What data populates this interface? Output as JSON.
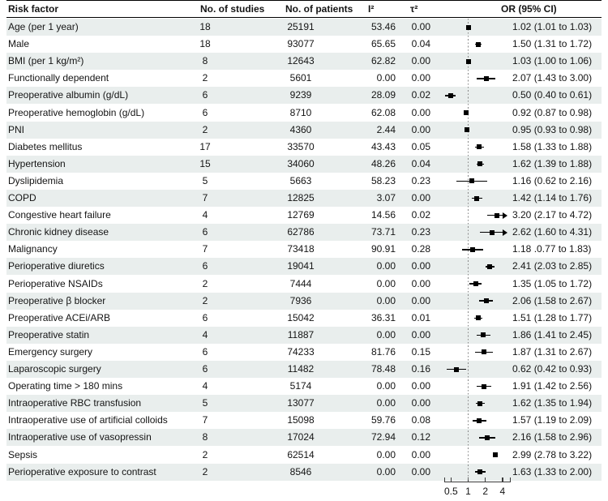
{
  "header": {
    "columns": [
      "Risk factor",
      "No. of studies",
      "No. of patients",
      "I²",
      "τ²",
      "OR (95% CI)"
    ]
  },
  "colors": {
    "row_stripe": "#e9eeed",
    "marker": "#000000",
    "reference_line": "#878787",
    "text": "#141414"
  },
  "chart_data": {
    "type": "table",
    "subtype": "forest-plot",
    "title": "",
    "columns": [
      "Risk factor",
      "No. of studies",
      "No. of patients",
      "I²",
      "τ²",
      "OR (95% CI)"
    ],
    "x_axis": {
      "scale": "log",
      "tick_labels": [
        "0.5",
        "1",
        "2",
        "4"
      ],
      "tick_values": [
        0.5,
        1,
        2,
        4
      ],
      "reference_line": 1,
      "clip_max": 4.3
    },
    "rows": [
      {
        "label": "Age (per 1 year)",
        "studies": "18",
        "patients": "25191",
        "i2": "53.46",
        "tau2": "0.00",
        "or": 1.02,
        "lo": 1.01,
        "hi": 1.03,
        "clip_hi": false,
        "or_text": "1.02 (1.01 to 1.03)"
      },
      {
        "label": "Male",
        "studies": "18",
        "patients": "93077",
        "i2": "65.65",
        "tau2": "0.04",
        "or": 1.5,
        "lo": 1.31,
        "hi": 1.72,
        "clip_hi": false,
        "or_text": "1.50 (1.31 to 1.72)"
      },
      {
        "label": "BMI (per 1 kg/m²)",
        "studies": "8",
        "patients": "12643",
        "i2": "62.82",
        "tau2": "0.00",
        "or": 1.03,
        "lo": 1.0,
        "hi": 1.06,
        "clip_hi": false,
        "or_text": "1.03 (1.00 to 1.06)"
      },
      {
        "label": "Functionally dependent",
        "studies": "2",
        "patients": "5601",
        "i2": "0.00",
        "tau2": "0.00",
        "or": 2.07,
        "lo": 1.43,
        "hi": 3.0,
        "clip_hi": false,
        "or_text": "2.07 (1.43 to 3.00)"
      },
      {
        "label": "Preoperative albumin (g/dL)",
        "studies": "6",
        "patients": "9239",
        "i2": "28.09",
        "tau2": "0.02",
        "or": 0.5,
        "lo": 0.4,
        "hi": 0.61,
        "clip_hi": false,
        "or_text": "0.50 (0.40 to 0.61)"
      },
      {
        "label": "Preoperative hemoglobin (g/dL)",
        "studies": "6",
        "patients": "8710",
        "i2": "62.08",
        "tau2": "0.00",
        "or": 0.92,
        "lo": 0.87,
        "hi": 0.98,
        "clip_hi": false,
        "or_text": "0.92 (0.87 to 0.98)"
      },
      {
        "label": "PNI",
        "studies": "2",
        "patients": "4360",
        "i2": "2.44",
        "tau2": "0.00",
        "or": 0.95,
        "lo": 0.93,
        "hi": 0.98,
        "clip_hi": false,
        "or_text": "0.95 (0.93 to 0.98)"
      },
      {
        "label": "Diabetes mellitus",
        "studies": "17",
        "patients": "33570",
        "i2": "43.43",
        "tau2": "0.05",
        "or": 1.58,
        "lo": 1.33,
        "hi": 1.88,
        "clip_hi": false,
        "or_text": "1.58 (1.33 to 1.88)"
      },
      {
        "label": "Hypertension",
        "studies": "15",
        "patients": "34060",
        "i2": "48.26",
        "tau2": "0.04",
        "or": 1.62,
        "lo": 1.39,
        "hi": 1.88,
        "clip_hi": false,
        "or_text": "1.62 (1.39 to 1.88)"
      },
      {
        "label": "Dyslipidemia",
        "studies": "5",
        "patients": "5663",
        "i2": "58.23",
        "tau2": "0.23",
        "or": 1.16,
        "lo": 0.62,
        "hi": 2.16,
        "clip_hi": false,
        "or_text": "1.16 (0.62 to 2.16)"
      },
      {
        "label": "COPD",
        "studies": "7",
        "patients": "12825",
        "i2": "3.07",
        "tau2": "0.00",
        "or": 1.42,
        "lo": 1.14,
        "hi": 1.76,
        "clip_hi": false,
        "or_text": "1.42 (1.14 to 1.76)"
      },
      {
        "label": "Congestive heart failure",
        "studies": "4",
        "patients": "12769",
        "i2": "14.56",
        "tau2": "0.02",
        "or": 3.2,
        "lo": 2.17,
        "hi": 4.72,
        "clip_hi": true,
        "or_text": "3.20 (2.17 to 4.72)"
      },
      {
        "label": "Chronic kidney disease",
        "studies": "6",
        "patients": "62786",
        "i2": "73.71",
        "tau2": "0.23",
        "or": 2.62,
        "lo": 1.6,
        "hi": 4.31,
        "clip_hi": true,
        "or_text": "2.62 (1.60 to 4.31)"
      },
      {
        "label": "Malignancy",
        "studies": "7",
        "patients": "73418",
        "i2": "90.91",
        "tau2": "0.28",
        "or": 1.18,
        "lo": 0.77,
        "hi": 1.83,
        "clip_hi": false,
        "or_text": "1.18 .0.77 to 1.83)"
      },
      {
        "label": "Perioperative diuretics",
        "studies": "6",
        "patients": "19041",
        "i2": "0.00",
        "tau2": "0.00",
        "or": 2.41,
        "lo": 2.03,
        "hi": 2.85,
        "clip_hi": false,
        "or_text": "2.41 (2.03 to 2.85)"
      },
      {
        "label": "Perioperative NSAIDs",
        "studies": "2",
        "patients": "7444",
        "i2": "0.00",
        "tau2": "0.00",
        "or": 1.35,
        "lo": 1.05,
        "hi": 1.72,
        "clip_hi": false,
        "or_text": "1.35 (1.05 to 1.72)"
      },
      {
        "label": "Preoperative β blocker",
        "studies": "2",
        "patients": "7936",
        "i2": "0.00",
        "tau2": "0.00",
        "or": 2.06,
        "lo": 1.58,
        "hi": 2.67,
        "clip_hi": false,
        "or_text": "2.06 (1.58 to 2.67)"
      },
      {
        "label": "Preoperative ACEi/ARB",
        "studies": "6",
        "patients": "15042",
        "i2": "36.31",
        "tau2": "0.01",
        "or": 1.51,
        "lo": 1.28,
        "hi": 1.77,
        "clip_hi": false,
        "or_text": "1.51 (1.28 to 1.77)"
      },
      {
        "label": "Preoperative statin",
        "studies": "4",
        "patients": "11887",
        "i2": "0.00",
        "tau2": "0.00",
        "or": 1.86,
        "lo": 1.41,
        "hi": 2.45,
        "clip_hi": false,
        "or_text": "1.86 (1.41 to 2.45)"
      },
      {
        "label": "Emergency surgery",
        "studies": "6",
        "patients": "74233",
        "i2": "81.76",
        "tau2": "0.15",
        "or": 1.87,
        "lo": 1.31,
        "hi": 2.67,
        "clip_hi": false,
        "or_text": "1.87 (1.31 to 2.67)"
      },
      {
        "label": "Laparoscopic surgery",
        "studies": "6",
        "patients": "11482",
        "i2": "78.48",
        "tau2": "0.16",
        "or": 0.62,
        "lo": 0.42,
        "hi": 0.93,
        "clip_hi": false,
        "or_text": "0.62 (0.42 to 0.93)"
      },
      {
        "label": "Operating time > 180 mins",
        "studies": "4",
        "patients": "5174",
        "i2": "0.00",
        "tau2": "0.00",
        "or": 1.91,
        "lo": 1.42,
        "hi": 2.56,
        "clip_hi": false,
        "or_text": "1.91 (1.42 to 2.56)"
      },
      {
        "label": "Intraoperative RBC transfusion",
        "studies": "5",
        "patients": "13077",
        "i2": "0.00",
        "tau2": "0.00",
        "or": 1.62,
        "lo": 1.35,
        "hi": 1.94,
        "clip_hi": false,
        "or_text": "1.62 (1.35 to 1.94)"
      },
      {
        "label": "Intraoperative use of artificial colloids",
        "studies": "7",
        "patients": "15098",
        "i2": "59.76",
        "tau2": "0.08",
        "or": 1.57,
        "lo": 1.19,
        "hi": 2.09,
        "clip_hi": false,
        "or_text": "1.57 (1.19 to 2.09)"
      },
      {
        "label": "Intraoperative use of vasopressin",
        "studies": "8",
        "patients": "17024",
        "i2": "72.94",
        "tau2": "0.12",
        "or": 2.16,
        "lo": 1.58,
        "hi": 2.96,
        "clip_hi": false,
        "or_text": "2.16 (1.58 to 2.96)"
      },
      {
        "label": "Sepsis",
        "studies": "2",
        "patients": "62514",
        "i2": "0.00",
        "tau2": "0.00",
        "or": 2.99,
        "lo": 2.78,
        "hi": 3.22,
        "clip_hi": false,
        "or_text": "2.99 (2.78 to 3.22)"
      },
      {
        "label": "Perioperative exposure to contrast",
        "studies": "2",
        "patients": "8546",
        "i2": "0.00",
        "tau2": "0.00",
        "or": 1.63,
        "lo": 1.33,
        "hi": 2.0,
        "clip_hi": false,
        "or_text": "1.63 (1.33 to 2.00)"
      }
    ]
  }
}
